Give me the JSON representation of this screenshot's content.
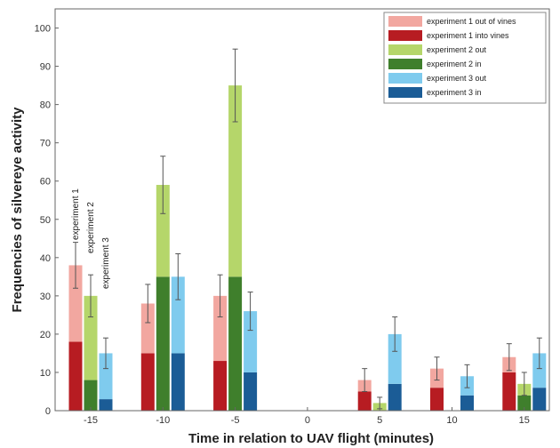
{
  "chart_data": {
    "type": "bar",
    "title": "",
    "xlabel": "Time in relation to UAV flight (minutes)",
    "ylabel": "Frequencies of silvereye activity",
    "ylim": [
      0,
      105
    ],
    "yticks": [
      0,
      10,
      20,
      30,
      40,
      50,
      60,
      70,
      80,
      90,
      100
    ],
    "categories": [
      "-15",
      "-10",
      "-5",
      "0",
      "5",
      "10",
      "15"
    ],
    "stacked_within_experiment": true,
    "legend_position": "top-right",
    "grid": false,
    "series": [
      {
        "name": "experiment 1 out of vines",
        "color": "#f2a7a0",
        "values": [
          20,
          13,
          17,
          0,
          3,
          5,
          4
        ],
        "totals": [
          38,
          28,
          30,
          0,
          8,
          11,
          14
        ],
        "error": [
          6,
          5,
          5.5,
          0,
          3,
          3,
          3.5
        ]
      },
      {
        "name": "experiment 1 into vines",
        "color": "#b71c22",
        "values": [
          18,
          15,
          13,
          0,
          5,
          6,
          10
        ]
      },
      {
        "name": "experiment 2 out",
        "color": "#b5d66a",
        "values": [
          22,
          24,
          50,
          0,
          2,
          0,
          3
        ],
        "totals": [
          30,
          59,
          85,
          0,
          2,
          0,
          7
        ],
        "error": [
          5.5,
          7.5,
          9.5,
          0,
          1.5,
          0,
          3
        ]
      },
      {
        "name": "experiment 2 in",
        "color": "#3f7f2c",
        "values": [
          8,
          35,
          35,
          0,
          0,
          0,
          4
        ]
      },
      {
        "name": "experiment 3 out",
        "color": "#7fcbee",
        "values": [
          12,
          20,
          16,
          0,
          13,
          5,
          9
        ],
        "totals": [
          15,
          35,
          26,
          0,
          20,
          9,
          15
        ],
        "error": [
          4,
          6,
          5,
          0,
          4.5,
          3,
          4
        ]
      },
      {
        "name": "experiment 3 in",
        "color": "#1b5c96",
        "values": [
          3,
          15,
          10,
          0,
          7,
          4,
          6
        ]
      }
    ],
    "annotations": [
      "experiment 1",
      "experiment 2",
      "experiment 3"
    ]
  }
}
